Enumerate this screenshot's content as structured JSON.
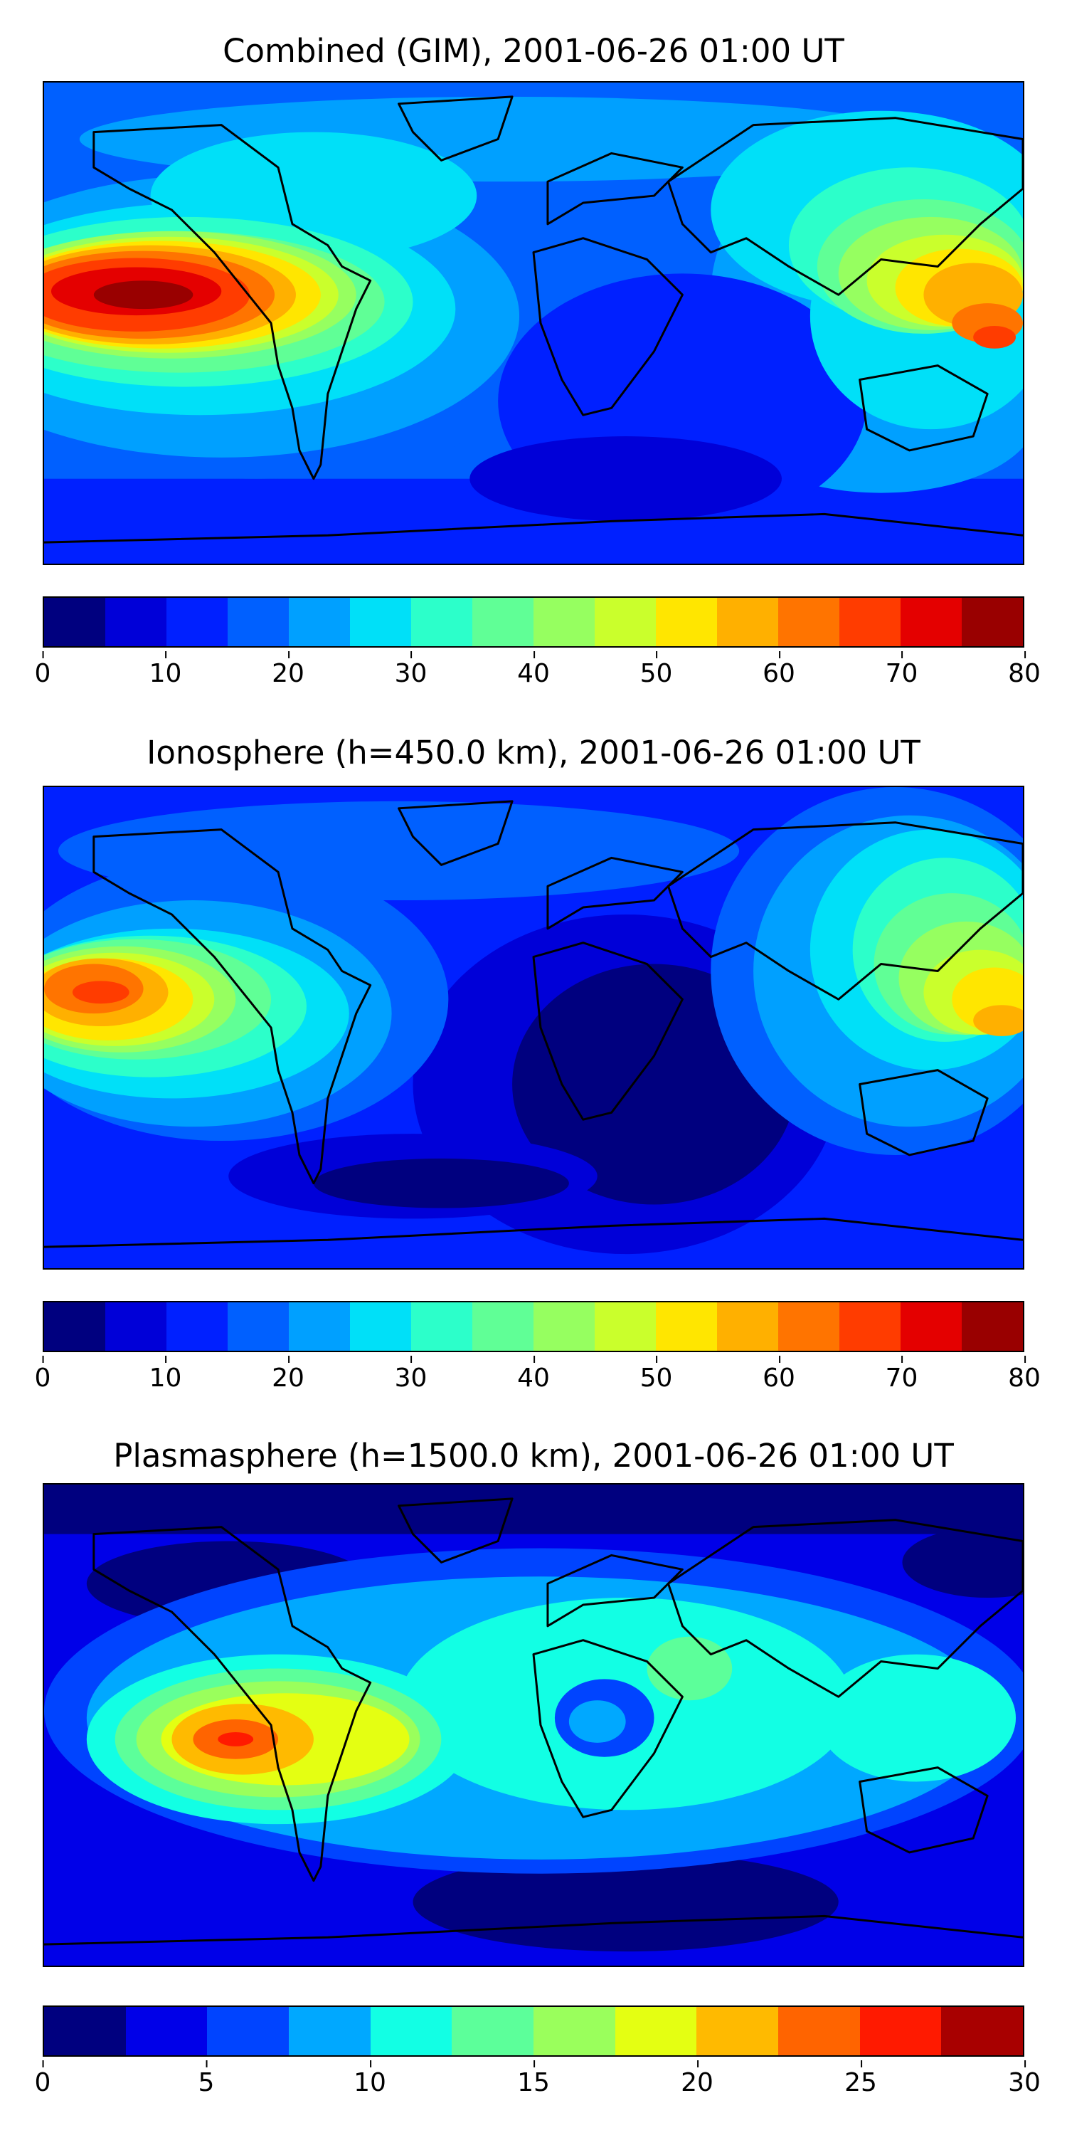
{
  "panels": [
    {
      "title": "Combined (GIM), 2001-06-26 01:00 UT",
      "colorbar_ticks": [
        "0",
        "10",
        "20",
        "30",
        "40",
        "50",
        "60",
        "70",
        "80"
      ],
      "colorbar_range": [
        0,
        80
      ],
      "levels": 16
    },
    {
      "title": "Ionosphere  (h=450.0 km), 2001-06-26 01:00 UT",
      "colorbar_ticks": [
        "0",
        "10",
        "20",
        "30",
        "40",
        "50",
        "60",
        "70",
        "80"
      ],
      "colorbar_range": [
        0,
        80
      ],
      "levels": 16
    },
    {
      "title": "Plasmasphere (h=1500.0 km), 2001-06-26 01:00 UT",
      "colorbar_ticks": [
        "0",
        "5",
        "10",
        "15",
        "20",
        "25",
        "30"
      ],
      "colorbar_range": [
        0,
        30
      ],
      "levels": 12
    }
  ],
  "colormap": "jet",
  "colors_16": [
    "#00007f",
    "#0000d8",
    "#0020ff",
    "#0060ff",
    "#00a0ff",
    "#00e0f8",
    "#2cffca",
    "#60ff96",
    "#96ff60",
    "#caff2c",
    "#ffe600",
    "#ffb000",
    "#ff7400",
    "#ff3c00",
    "#e40000",
    "#990000"
  ],
  "colors_12": [
    "#00007f",
    "#0000e8",
    "#0044ff",
    "#00a8ff",
    "#12ffe4",
    "#5cff9a",
    "#9aff5c",
    "#e4ff12",
    "#ffba00",
    "#ff6400",
    "#ff1a00",
    "#a80000"
  ]
}
